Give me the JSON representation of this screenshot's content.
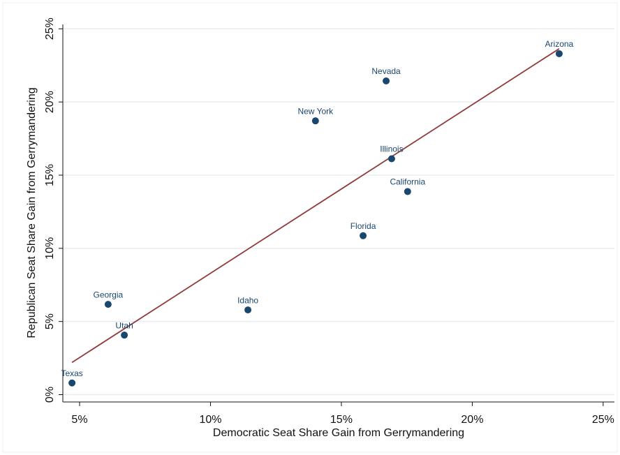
{
  "chart_data": {
    "type": "scatter",
    "x_label": "Democratic Seat Share Gain from Gerrymandering",
    "y_label": "Republican Seat Share Gain from Gerrymandering",
    "labels": [
      "Texas",
      "Georgia",
      "Utah",
      "Idaho",
      "Florida",
      "New York",
      "Illinois",
      "California",
      "Nevada",
      "Arizona"
    ],
    "x": [
      4.71,
      6.09,
      6.71,
      11.43,
      15.83,
      14.01,
      16.92,
      17.53,
      16.71,
      23.32
    ],
    "values": [
      0.8,
      6.17,
      4.07,
      5.79,
      10.86,
      18.71,
      16.12,
      13.88,
      21.44,
      23.3
    ],
    "color": "#1a476f",
    "fit_line": {
      "x": [
        4.71,
        23.32
      ],
      "values": [
        2.2,
        23.64
      ],
      "color": "#903c3c"
    },
    "xlim": [
      4.36,
      25.43
    ],
    "ylim": [
      -0.5,
      25.3
    ],
    "xticks": [
      {
        "value": 5,
        "label": "5%"
      },
      {
        "value": 10,
        "label": "10%"
      },
      {
        "value": 15,
        "label": "15%"
      },
      {
        "value": 20,
        "label": "20%"
      },
      {
        "value": 25,
        "label": "25%"
      }
    ],
    "yticks": [
      {
        "value": 0,
        "label": "0%"
      },
      {
        "value": 5,
        "label": "5%"
      },
      {
        "value": 10,
        "label": "10%"
      },
      {
        "value": 15,
        "label": "15%"
      },
      {
        "value": 20,
        "label": "20%"
      },
      {
        "value": 25,
        "label": "25%"
      }
    ],
    "grid": true
  }
}
